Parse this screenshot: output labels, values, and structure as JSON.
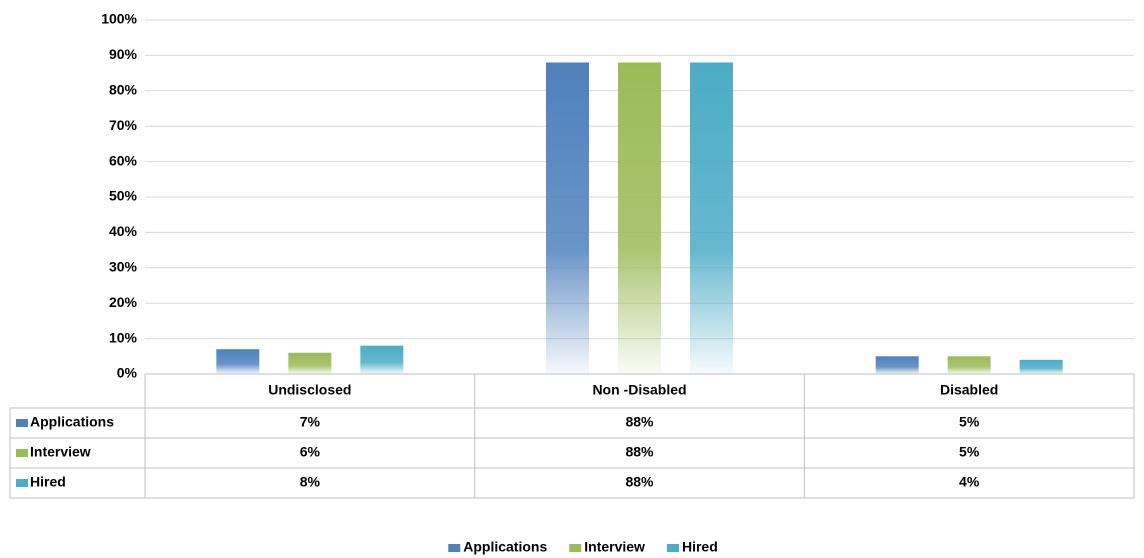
{
  "chart_data": {
    "type": "bar",
    "categories": [
      "Undisclosed",
      "Non -Disabled",
      "Disabled"
    ],
    "series": [
      {
        "name": "Applications",
        "color": "#4f81bd",
        "values": [
          7,
          88,
          5
        ],
        "value_labels": [
          "7%",
          "88%",
          "5%"
        ]
      },
      {
        "name": "Interview",
        "color": "#9bbb59",
        "values": [
          6,
          88,
          5
        ],
        "value_labels": [
          "6%",
          "88%",
          "5%"
        ]
      },
      {
        "name": "Hired",
        "color": "#4bacc6",
        "values": [
          8,
          88,
          4
        ],
        "value_labels": [
          "8%",
          "88%",
          "4%"
        ]
      }
    ],
    "ylim": [
      0,
      100
    ],
    "yticks": [
      {
        "value": 0,
        "label": "0%"
      },
      {
        "value": 10,
        "label": "10%"
      },
      {
        "value": 20,
        "label": "20%"
      },
      {
        "value": 30,
        "label": "30%"
      },
      {
        "value": 40,
        "label": "40%"
      },
      {
        "value": 50,
        "label": "50%"
      },
      {
        "value": 60,
        "label": "60%"
      },
      {
        "value": 70,
        "label": "70%"
      },
      {
        "value": 80,
        "label": "80%"
      },
      {
        "value": 90,
        "label": "90%"
      },
      {
        "value": 100,
        "label": "100%"
      }
    ],
    "grid": true,
    "legend": "bottom"
  }
}
